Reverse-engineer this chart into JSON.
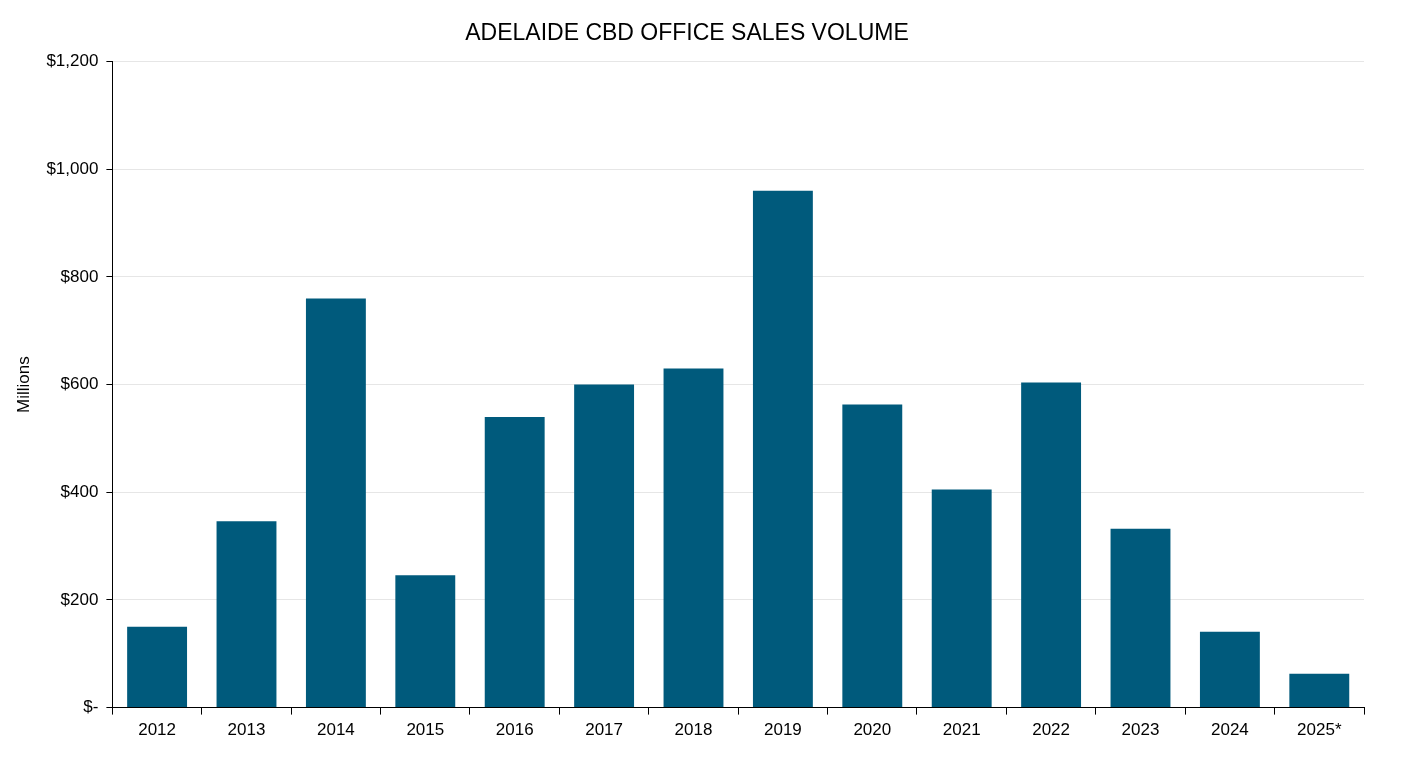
{
  "chart_data": {
    "type": "bar",
    "title": "ADELAIDE CBD OFFICE SALES VOLUME",
    "ylabel": "Millions",
    "categories": [
      "2012",
      "2013",
      "2014",
      "2015",
      "2016",
      "2017",
      "2018",
      "2019",
      "2020",
      "2021",
      "2022",
      "2023",
      "2024",
      "2025*"
    ],
    "values": [
      150,
      346,
      760,
      246,
      540,
      600,
      630,
      960,
      563,
      405,
      604,
      332,
      141,
      63
    ],
    "color": "#005a7c",
    "ylim": [
      0,
      1200
    ],
    "yticks": [
      {
        "value": 0,
        "label": "$-"
      },
      {
        "value": 200,
        "label": "$200"
      },
      {
        "value": 400,
        "label": "$400"
      },
      {
        "value": 600,
        "label": "$600"
      },
      {
        "value": 800,
        "label": "$800"
      },
      {
        "value": 1000,
        "label": "$1,000"
      },
      {
        "value": 1200,
        "label": "$1,200"
      }
    ],
    "grid": "y",
    "legend": false
  }
}
